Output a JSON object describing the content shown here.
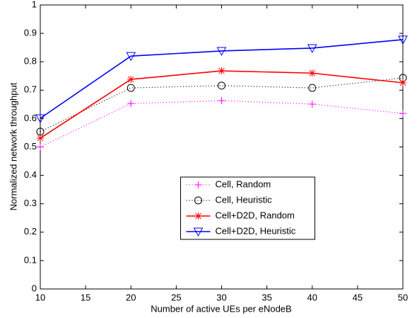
{
  "chart_data": {
    "type": "line",
    "xlabel": "Number of active UEs per eNodeB",
    "ylabel": "Normalized network throughput",
    "x": [
      10,
      20,
      30,
      40,
      50
    ],
    "series": [
      {
        "name": "Cell, Random",
        "color": "#ff00ff",
        "linestyle": "dotted",
        "marker": "plus",
        "values": [
          0.5,
          0.653,
          0.663,
          0.651,
          0.618
        ]
      },
      {
        "name": "Cell, Heuristic",
        "color": "#000000",
        "linestyle": "dotted",
        "marker": "circle",
        "values": [
          0.554,
          0.708,
          0.716,
          0.708,
          0.743
        ]
      },
      {
        "name": "Cell+D2D, Random",
        "color": "#ff0000",
        "linestyle": "solid",
        "marker": "star",
        "values": [
          0.531,
          0.738,
          0.768,
          0.76,
          0.726
        ]
      },
      {
        "name": "Cell+D2D, Heuristic",
        "color": "#0000ff",
        "linestyle": "solid",
        "marker": "triangle-down",
        "values": [
          0.601,
          0.82,
          0.838,
          0.848,
          0.878
        ]
      }
    ],
    "xlim": [
      10,
      50
    ],
    "xticks": [
      10,
      15,
      20,
      25,
      30,
      35,
      40,
      45,
      50
    ],
    "ylim": [
      0,
      1
    ],
    "yticks": [
      0,
      0.1,
      0.2,
      0.3,
      0.4,
      0.5,
      0.6,
      0.7,
      0.8,
      0.9,
      1
    ],
    "grid": false,
    "legend": "lower center"
  }
}
